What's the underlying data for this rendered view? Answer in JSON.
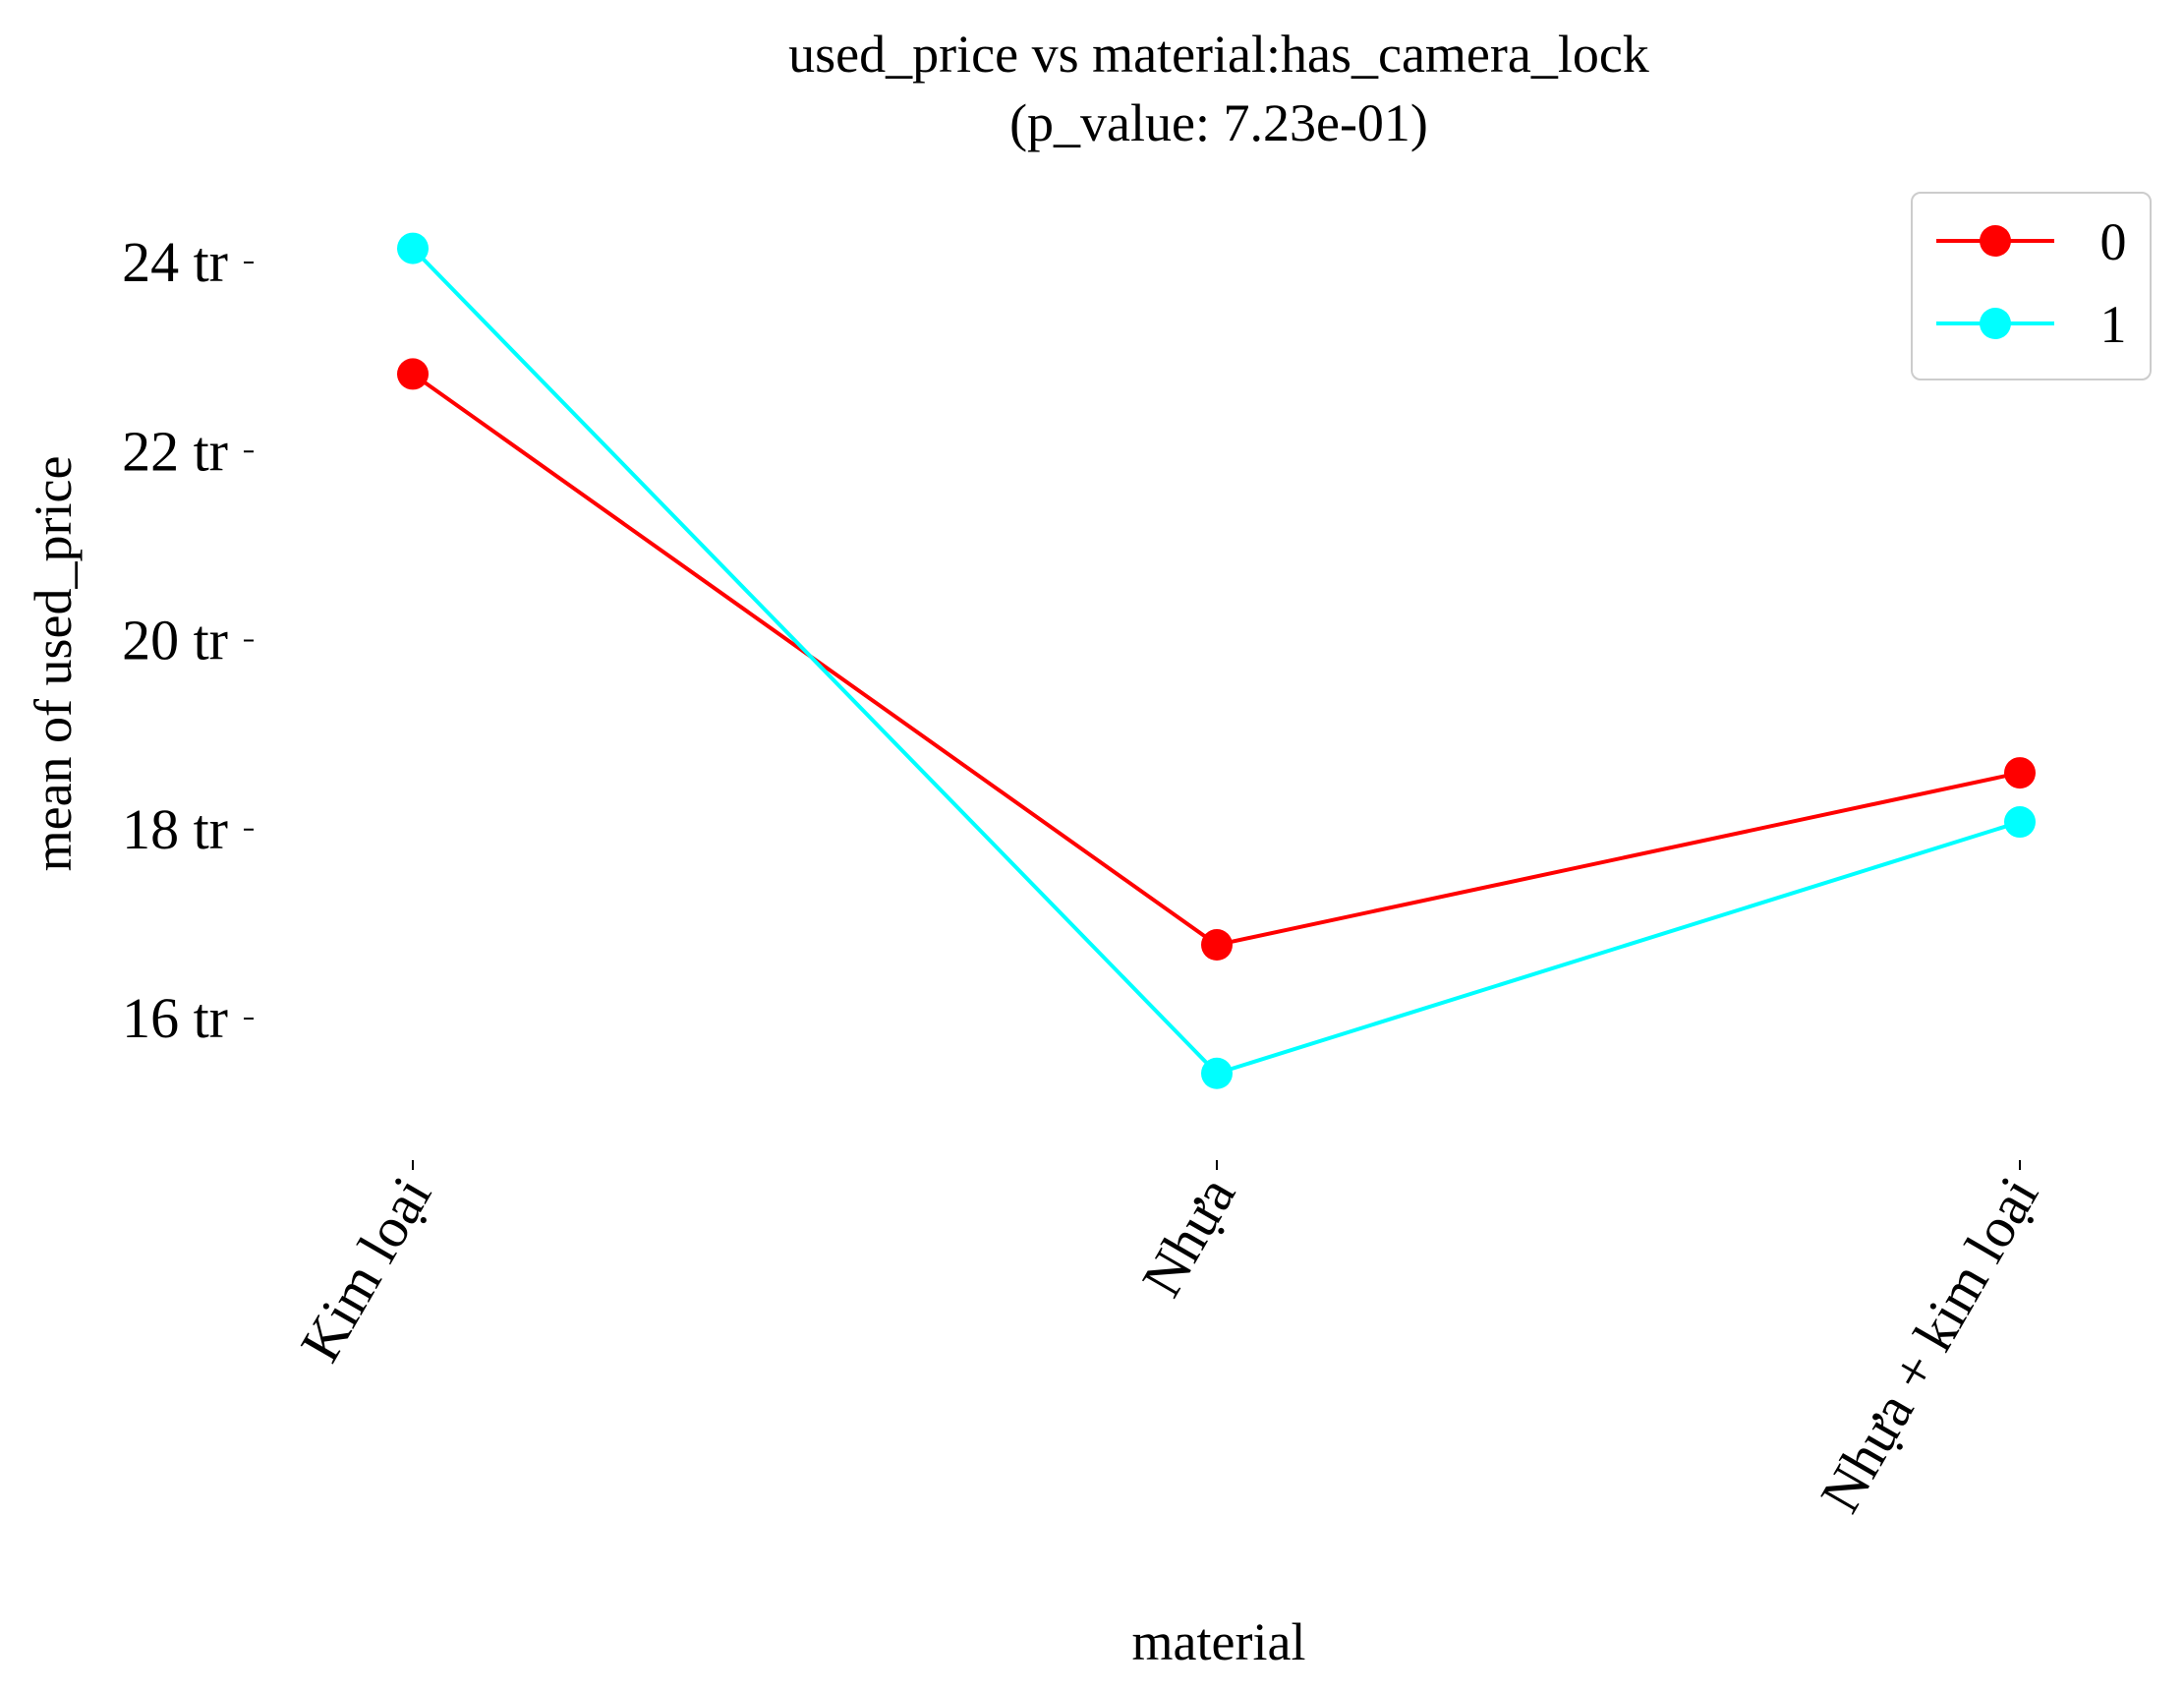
{
  "chart_data": {
    "type": "line",
    "title": "used_price vs material:has_camera_lock",
    "subtitle": "(p_value: 7.23e-01)",
    "xlabel": "material",
    "ylabel": "mean of used_price",
    "categories": [
      "Kim loại",
      "Nhựa",
      "Nhựa + kim loại"
    ],
    "y_ticks": [
      16,
      18,
      20,
      22,
      24
    ],
    "y_tick_labels": [
      "16 tr",
      "18 tr",
      "20 tr",
      "22 tr",
      "24 tr"
    ],
    "y_unit": "million (tr)",
    "ylim": [
      14.7,
      24.8
    ],
    "grid": false,
    "legend_position": "top-right",
    "series": [
      {
        "name": "0",
        "color": "#ff0000",
        "values": [
          22.82,
          16.78,
          18.6
        ]
      },
      {
        "name": "1",
        "color": "#00ffff",
        "values": [
          24.15,
          15.42,
          18.08
        ]
      }
    ]
  }
}
